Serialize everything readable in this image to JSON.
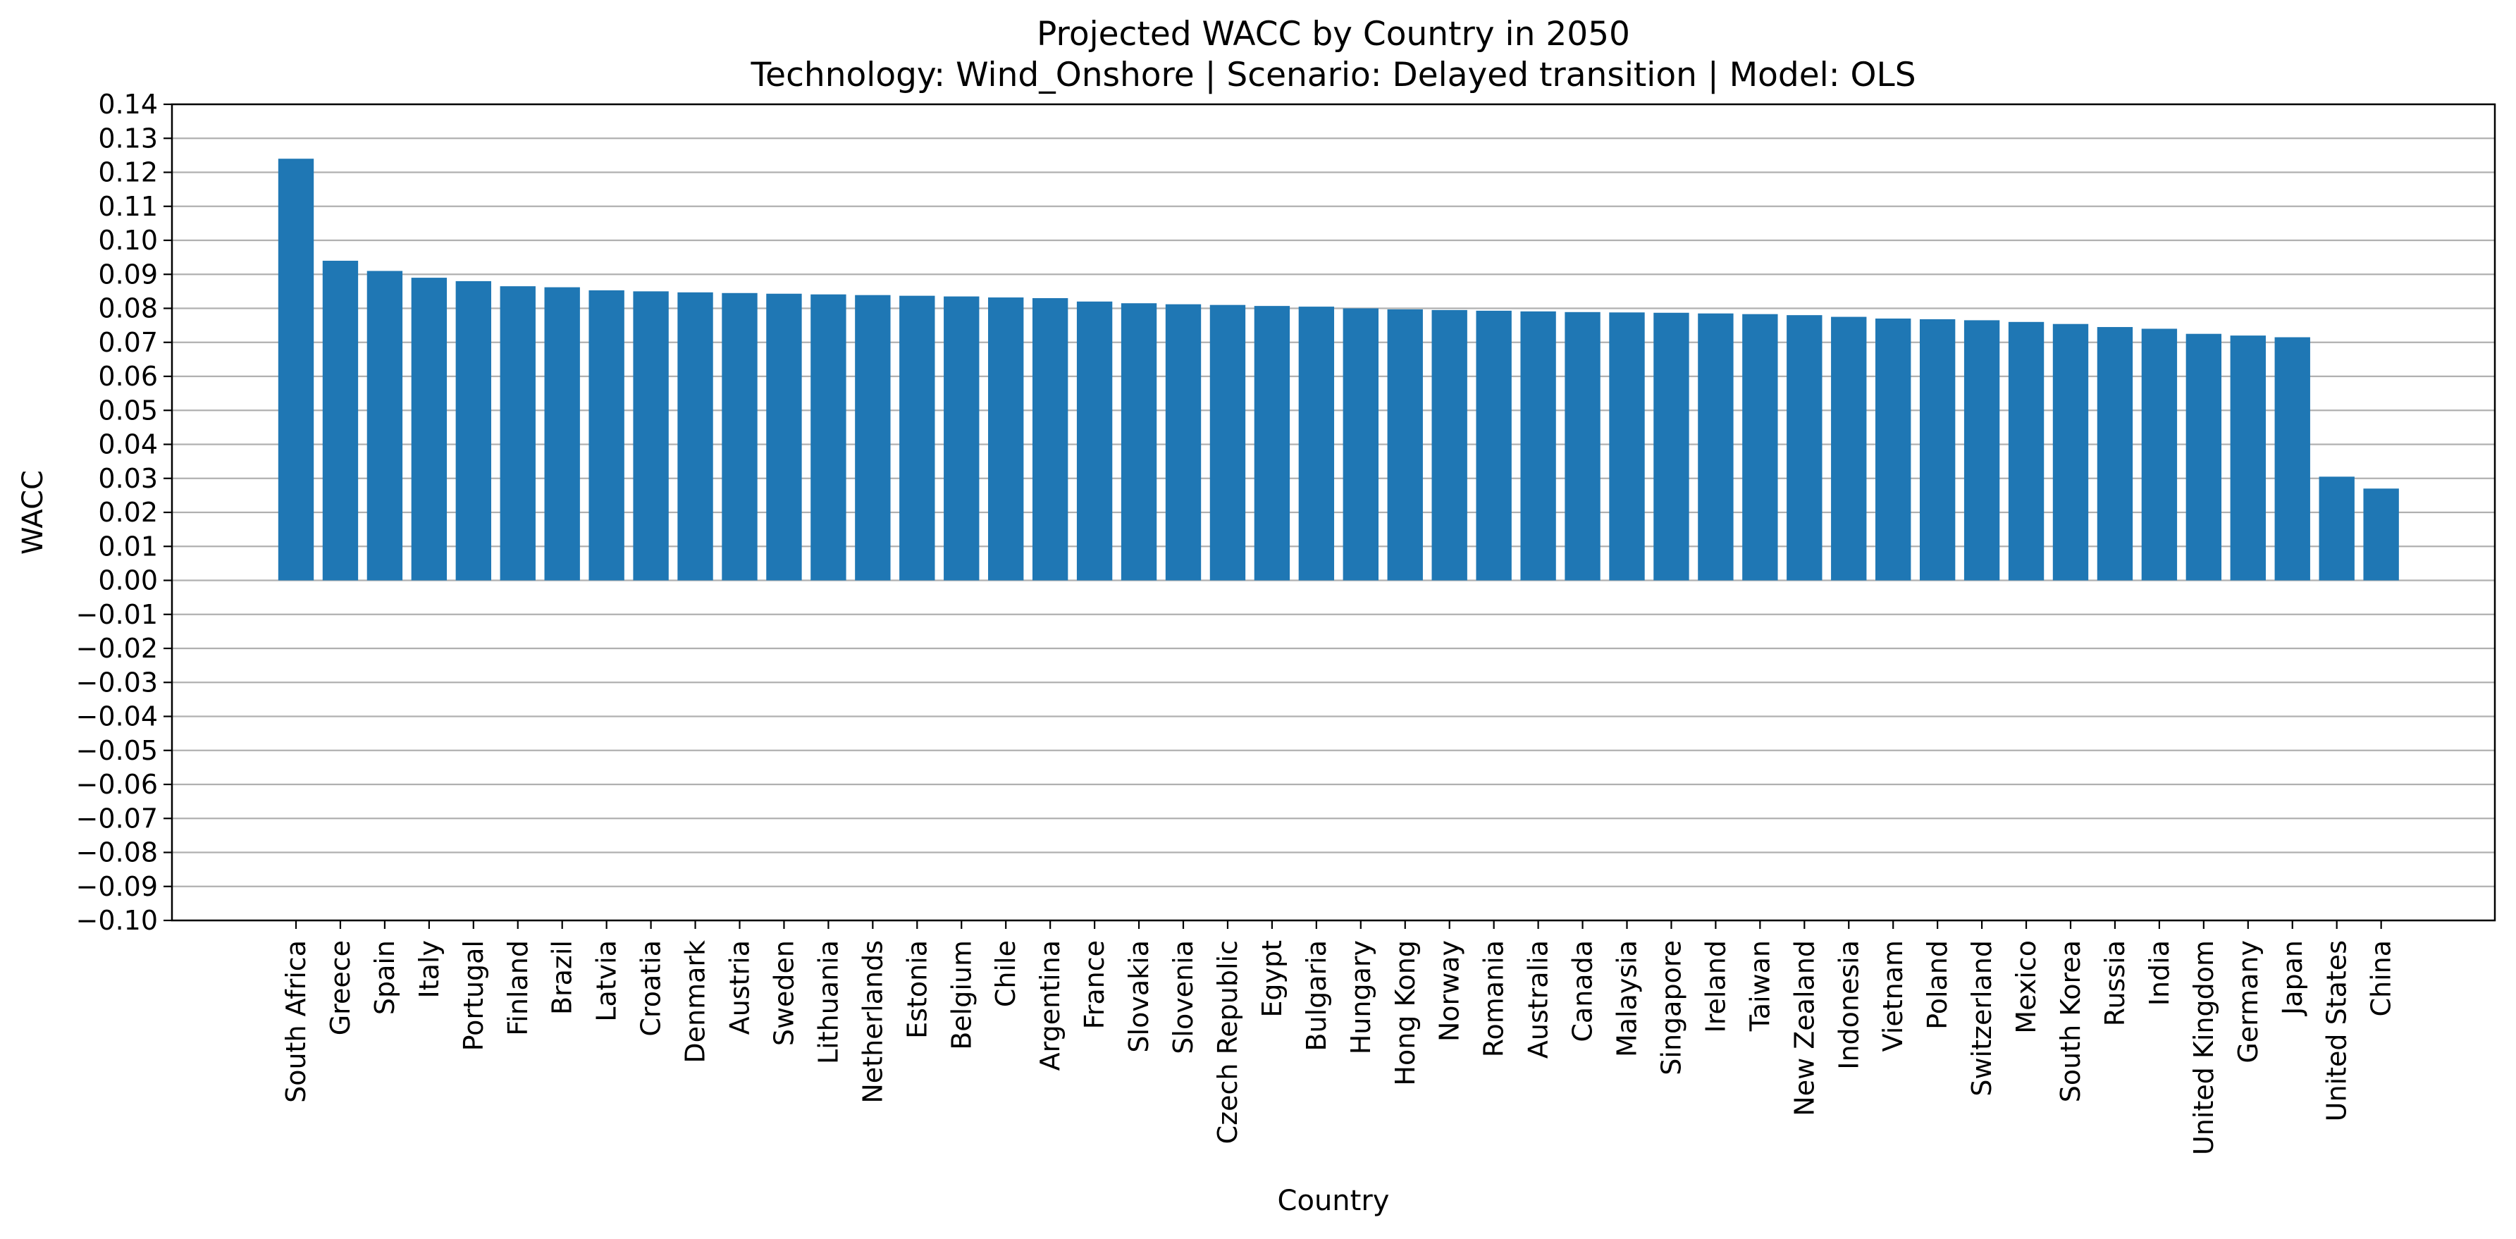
{
  "chart_data": {
    "type": "bar",
    "title": "Projected WACC by Country in 2050",
    "subtitle": "Technology: Wind_Onshore | Scenario: Delayed transition | Model: OLS",
    "xlabel": "Country",
    "ylabel": "WACC",
    "ylim": [
      -0.1,
      0.14
    ],
    "yticks": [
      "0.14",
      "0.13",
      "0.12",
      "0.11",
      "0.10",
      "0.09",
      "0.08",
      "0.07",
      "0.06",
      "0.05",
      "0.04",
      "0.03",
      "0.02",
      "0.01",
      "0.00",
      "−0.01",
      "−0.02",
      "−0.03",
      "−0.04",
      "−0.05",
      "−0.06",
      "−0.07",
      "−0.08",
      "−0.09",
      "−0.10"
    ],
    "grid": "horizontal",
    "bar_color": "#1f77b4",
    "categories": [
      "South Africa",
      "Greece",
      "Spain",
      "Italy",
      "Portugal",
      "Finland",
      "Brazil",
      "Latvia",
      "Croatia",
      "Denmark",
      "Austria",
      "Sweden",
      "Lithuania",
      "Netherlands",
      "Estonia",
      "Belgium",
      "Chile",
      "Argentina",
      "France",
      "Slovakia",
      "Slovenia",
      "Czech Republic",
      "Egypt",
      "Bulgaria",
      "Hungary",
      "Hong Kong",
      "Norway",
      "Romania",
      "Australia",
      "Canada",
      "Malaysia",
      "Singapore",
      "Ireland",
      "Taiwan",
      "New Zealand",
      "Indonesia",
      "Vietnam",
      "Poland",
      "Switzerland",
      "Mexico",
      "South Korea",
      "Russia",
      "India",
      "United Kingdom",
      "Germany",
      "Japan",
      "United States",
      "China"
    ],
    "values": [
      0.124,
      0.094,
      0.091,
      0.089,
      0.088,
      0.0865,
      0.0862,
      0.0853,
      0.085,
      0.0847,
      0.0845,
      0.0843,
      0.0841,
      0.0839,
      0.0837,
      0.0835,
      0.0832,
      0.083,
      0.082,
      0.0815,
      0.0812,
      0.081,
      0.0807,
      0.0805,
      0.08,
      0.0797,
      0.0795,
      0.0793,
      0.0791,
      0.0789,
      0.0788,
      0.0787,
      0.0785,
      0.0783,
      0.078,
      0.0775,
      0.077,
      0.0768,
      0.0765,
      0.076,
      0.0754,
      0.0745,
      0.074,
      0.0725,
      0.072,
      0.0715,
      0.0305,
      0.027
    ]
  }
}
